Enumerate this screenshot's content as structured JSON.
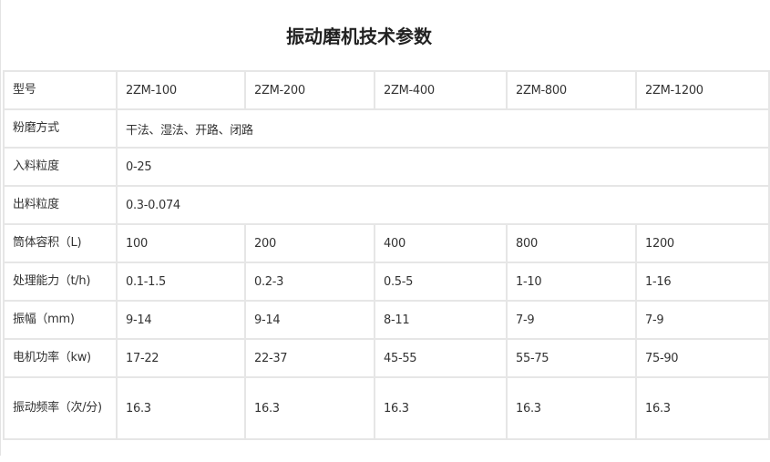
{
  "title": "振动磨机技术参数",
  "table": {
    "rows": [
      {
        "label": "型号",
        "cells": [
          "2ZM-100",
          "2ZM-200",
          "2ZM-400",
          "2ZM-800",
          "2ZM-1200"
        ]
      },
      {
        "label": "粉磨方式",
        "span": "干法、湿法、开路、闭路"
      },
      {
        "label": "入料粒度",
        "span": "0-25"
      },
      {
        "label": "出料粒度",
        "span": "0.3-0.074"
      },
      {
        "label": "筒体容积（L)",
        "cells": [
          "100",
          "200",
          "400",
          "800",
          "1200"
        ]
      },
      {
        "label": "处理能力（t/h)",
        "cells": [
          "0.1-1.5",
          "0.2-3",
          "0.5-5",
          "1-10",
          "1-16"
        ]
      },
      {
        "label": "振幅（mm)",
        "cells": [
          "9-14",
          "9-14",
          "8-11",
          "7-9",
          "7-9"
        ]
      },
      {
        "label": "电机功率（kw)",
        "cells": [
          "17-22",
          "22-37",
          "45-55",
          "55-75",
          "75-90"
        ]
      },
      {
        "label": "振动频率（次/分)",
        "cells": [
          "16.3",
          "16.3",
          "16.3",
          "16.3",
          "16.3"
        ]
      }
    ]
  }
}
